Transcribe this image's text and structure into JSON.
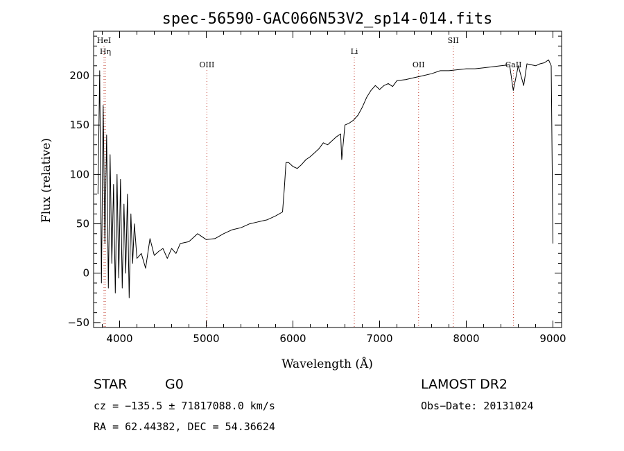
{
  "chart_data": {
    "type": "line",
    "title": "spec-56590-GAC066N53V2_sp14-014.fits",
    "xlabel": "Wavelength (Å)",
    "ylabel": "Flux (relative)",
    "xlim": [
      3700,
      9100
    ],
    "ylim": [
      -55,
      245
    ],
    "xticks": [
      4000,
      5000,
      6000,
      7000,
      8000,
      9000
    ],
    "yticks": [
      -50,
      0,
      50,
      100,
      150,
      200
    ],
    "grid": false,
    "line_markers": [
      {
        "label": "HeI",
        "x": 3820,
        "row": 0
      },
      {
        "label": "Hη",
        "x": 3836,
        "row": 1
      },
      {
        "label": "OIII",
        "x": 5007,
        "row": 2
      },
      {
        "label": "Li",
        "x": 6708,
        "row": 1
      },
      {
        "label": "OII",
        "x": 7450,
        "row": 2
      },
      {
        "label": "SII",
        "x": 7850,
        "row": 0
      },
      {
        "label": "CaII",
        "x": 8545,
        "row": 2
      }
    ],
    "series": [
      {
        "x": [
          3750,
          3770,
          3790,
          3810,
          3830,
          3850,
          3870,
          3890,
          3910,
          3930,
          3950,
          3970,
          3990,
          4010,
          4030,
          4050,
          4070,
          4090,
          4110,
          4130,
          4150,
          4170,
          4200,
          4250,
          4300,
          4350,
          4400,
          4450,
          4500,
          4550,
          4600,
          4650,
          4700,
          4800,
          4900,
          5000,
          5100,
          5200,
          5300,
          5400,
          5500,
          5600,
          5700,
          5800,
          5880,
          5900,
          5920,
          5950,
          6000,
          6050,
          6100,
          6150,
          6200,
          6250,
          6300,
          6350,
          6400,
          6450,
          6500,
          6550,
          6563,
          6600,
          6650,
          6700,
          6750,
          6800,
          6850,
          6900,
          6950,
          7000,
          7050,
          7100,
          7150,
          7200,
          7300,
          7400,
          7500,
          7600,
          7700,
          7800,
          7900,
          8000,
          8100,
          8200,
          8300,
          8400,
          8500,
          8542,
          8600,
          8662,
          8700,
          8800,
          8850,
          8900,
          8950,
          8980,
          9000
        ],
        "y": [
          80,
          205,
          -10,
          170,
          30,
          140,
          -15,
          120,
          10,
          90,
          -20,
          100,
          -5,
          95,
          -15,
          70,
          0,
          80,
          -25,
          60,
          10,
          50,
          15,
          20,
          5,
          35,
          18,
          22,
          25,
          15,
          25,
          20,
          30,
          32,
          40,
          34,
          35,
          40,
          44,
          46,
          50,
          52,
          54,
          58,
          62,
          85,
          112,
          112,
          108,
          106,
          110,
          115,
          118,
          122,
          126,
          132,
          130,
          134,
          138,
          141,
          115,
          150,
          152,
          155,
          160,
          168,
          178,
          185,
          190,
          186,
          190,
          192,
          189,
          195,
          196,
          198,
          200,
          202,
          205,
          205,
          206,
          207,
          207,
          208,
          209,
          210,
          211,
          185,
          210,
          190,
          212,
          210,
          212,
          213,
          216,
          210,
          30
        ]
      }
    ],
    "footer": {
      "object_class": "STAR",
      "subclass": "G0",
      "survey": "LAMOST DR2",
      "cz_line": "cz = −135.5 ± 71817088.0 km/s",
      "obs_date": "Obs−Date: 20131024",
      "radec_line": "RA =  62.44382, DEC =  54.36624"
    }
  }
}
